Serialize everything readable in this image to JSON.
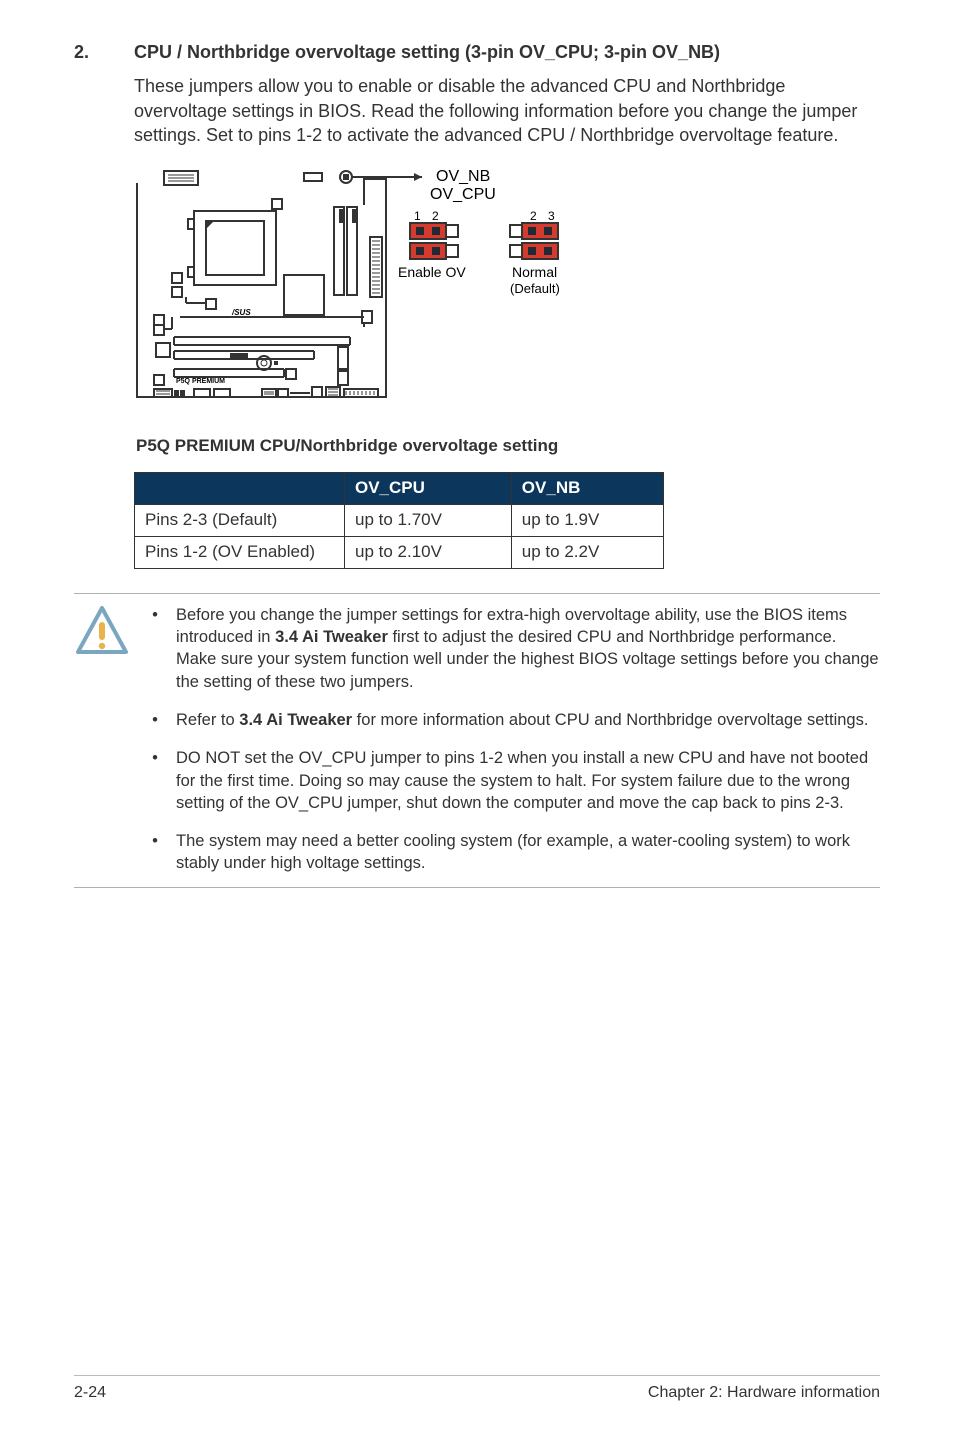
{
  "section": {
    "number": "2.",
    "title": "CPU / Northbridge overvoltage setting (3-pin OV_CPU; 3-pin OV_NB)",
    "intro": "These jumpers allow you to enable or disable the advanced CPU and Northbridge overvoltage settings in BIOS. Read the following information before you change the jumper settings. Set to pins 1-2 to activate the advanced CPU / Northbridge overvoltage feature."
  },
  "diagram": {
    "label_ov_nb": "OV_NB",
    "label_ov_cpu": "OV_CPU",
    "pin_labels": {
      "one": "1",
      "two": "2",
      "two_b": "2",
      "three": "3"
    },
    "enable_ov": "Enable OV",
    "normal": "Normal",
    "default": "(Default)",
    "board_label": "P5Q PREMIUM",
    "caption": "P5Q PREMIUM CPU/Northbridge overvoltage setting"
  },
  "table": {
    "headers": {
      "blank": "",
      "ov_cpu": "OV_CPU",
      "ov_nb": "OV_NB"
    },
    "rows": [
      {
        "label": "Pins 2-3 (Default)",
        "cpu": "up to 1.70V",
        "nb": "up to 1.9V"
      },
      {
        "label": "Pins 1-2 (OV Enabled)",
        "cpu": "up to 2.10V",
        "nb": "up to 2.2V"
      }
    ]
  },
  "callout": {
    "bullets": [
      "Before you change the jumper settings for extra-high overvoltage ability, use the BIOS items introduced in 3.4 Ai Tweaker first to adjust the desired CPU and Northbridge performance. Make sure your system function well under the highest BIOS voltage settings before you change the setting of these two jumpers.",
      "Refer to 3.4 Ai Tweaker for more information about CPU and Northbridge overvoltage settings.",
      "DO NOT set the OV_CPU jumper to pins 1-2 when you install a new CPU and have not booted for the first time. Doing so may cause the system to halt. For system failure due to the wrong setting of the OV_CPU jumper, shut down the computer and move the cap back to pins 2-3.",
      "The system may need a better cooling system (for example, a water-cooling system) to work stably under high voltage settings."
    ],
    "bold_ref": "3.4 Ai Tweaker"
  },
  "footer": {
    "page": "2-24",
    "chapter": "Chapter 2: Hardware information"
  },
  "colors": {
    "header_bg": "#0c365b",
    "header_fg": "#ffffff",
    "jumper_red": "#d43a2e",
    "jumper_dark": "#1f2a36",
    "warn_stroke": "#7aa6c2",
    "warn_fill": "#ffffff",
    "warn_bang": "#e9b34a"
  }
}
